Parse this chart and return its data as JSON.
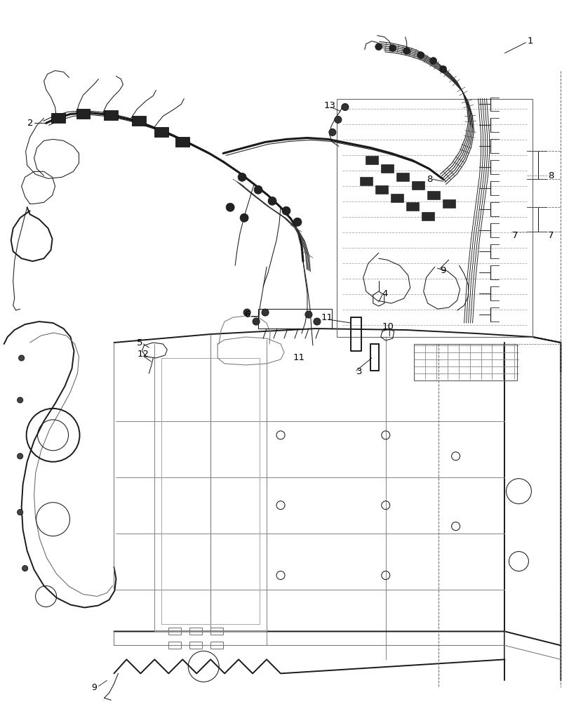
{
  "bg": "#ffffff",
  "lc": "#1a1a1a",
  "dlc": "#666666",
  "lw_main": 1.4,
  "lw_thin": 0.75,
  "lw_thick": 2.2,
  "fig_w": 8.12,
  "fig_h": 10.0,
  "dpi": 100
}
